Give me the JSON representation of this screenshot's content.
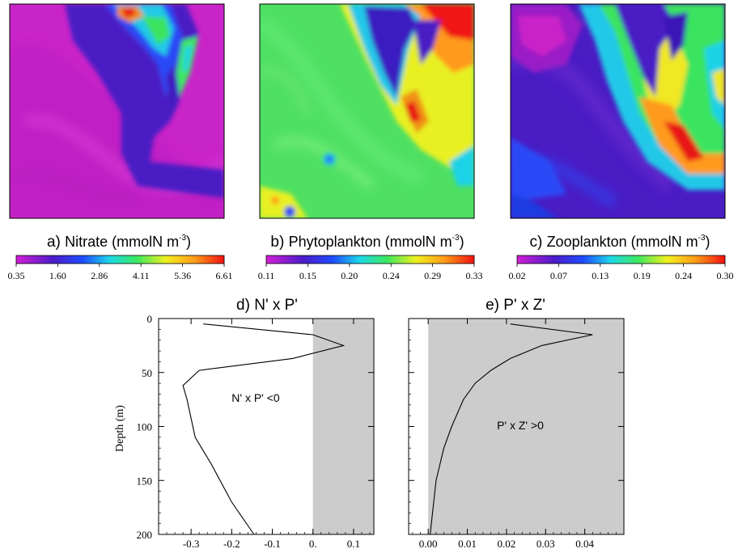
{
  "panels": [
    {
      "id": "a",
      "title_prefix": "a)",
      "title_main": "Nitrate (mmolN m",
      "title_sup": "-3",
      "title_close": ")",
      "colorbar_ticks": [
        "0.35",
        "1.60",
        "2.86",
        "4.11",
        "5.36",
        "6.61"
      ],
      "colormap": "rainbow (magenta-blue-cyan-green-yellow-red)"
    },
    {
      "id": "b",
      "title_prefix": "b)",
      "title_main": "Phytoplankton (mmolN m",
      "title_sup": "-3",
      "title_close": ")",
      "colorbar_ticks": [
        "0.11",
        "0.15",
        "0.20",
        "0.24",
        "0.29",
        "0.33"
      ],
      "colormap": "rainbow (magenta-blue-cyan-green-yellow-red)"
    },
    {
      "id": "c",
      "title_prefix": "c)",
      "title_main": "Zooplankton (mmolN m",
      "title_sup": "-3",
      "title_close": ")",
      "colorbar_ticks": [
        "0.02",
        "0.07",
        "0.13",
        "0.19",
        "0.24",
        "0.30"
      ],
      "colormap": "rainbow (magenta-blue-cyan-green-yellow-red)"
    }
  ],
  "chart_data": [
    {
      "type": "line",
      "title": "d) N' x P'",
      "ylabel": "Depth (m)",
      "xlabel": "",
      "xlim": [
        -0.38,
        0.15
      ],
      "ylim": [
        200,
        0
      ],
      "y_inverted": true,
      "x_ticks": [
        "-0.3",
        "-0.2",
        "-0.1",
        "0.",
        "0.1"
      ],
      "x_tick_values": [
        -0.3,
        -0.2,
        -0.1,
        0.0,
        0.1
      ],
      "y_ticks": [
        "0",
        "50",
        "100",
        "150",
        "200"
      ],
      "y_tick_values": [
        0,
        50,
        100,
        150,
        200
      ],
      "shaded_region": {
        "x_from": 0.0,
        "x_to": 0.15,
        "color": "#cccccc"
      },
      "annotation": "N' x P' <0",
      "series": [
        {
          "x": [
            -0.27,
            0.0,
            0.075,
            -0.05,
            -0.28,
            -0.32,
            -0.31,
            -0.29,
            -0.25,
            -0.2,
            -0.145
          ],
          "y": [
            5,
            15,
            25,
            37,
            48,
            62,
            75,
            110,
            135,
            170,
            200
          ]
        }
      ]
    },
    {
      "type": "line",
      "title": "e) P' x Z'",
      "ylabel": "",
      "xlabel": "",
      "xlim": [
        -0.005,
        0.05
      ],
      "ylim": [
        200,
        0
      ],
      "y_inverted": true,
      "x_ticks": [
        "0.00",
        "0.01",
        "0.02",
        "0.03",
        "0.04"
      ],
      "x_tick_values": [
        0.0,
        0.01,
        0.02,
        0.03,
        0.04
      ],
      "shaded_region": {
        "x_from": 0.0,
        "x_to": 0.05,
        "color": "#cccccc"
      },
      "annotation": "P' x Z' >0",
      "series": [
        {
          "x": [
            0.021,
            0.042,
            0.029,
            0.021,
            0.016,
            0.012,
            0.009,
            0.006,
            0.004,
            0.002,
            0.0005
          ],
          "y": [
            5,
            15,
            25,
            37,
            48,
            60,
            75,
            100,
            120,
            150,
            200
          ]
        }
      ]
    }
  ]
}
